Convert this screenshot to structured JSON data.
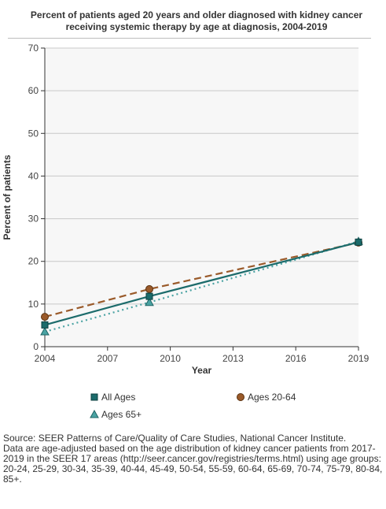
{
  "chart_data": {
    "type": "line",
    "title": "Percent of patients aged 20 years and older diagnosed with kidney cancer receiving systemic therapy by age at diagnosis, 2004-2019",
    "xlabel": "Year",
    "ylabel": "Percent of patients",
    "xlim": [
      2004,
      2019
    ],
    "ylim": [
      0,
      70
    ],
    "xticks": [
      2004,
      2007,
      2010,
      2013,
      2016,
      2019
    ],
    "yticks": [
      0,
      10,
      20,
      30,
      40,
      50,
      60,
      70
    ],
    "grid": true,
    "legend_position": "bottom",
    "series": [
      {
        "name": "All Ages",
        "x": [
          2004,
          2009,
          2019
        ],
        "values": [
          5.1,
          11.8,
          24.5
        ],
        "color": "#1c6b6b",
        "style": "solid",
        "marker": "square"
      },
      {
        "name": "Ages 20-64",
        "x": [
          2004,
          2009,
          2019
        ],
        "values": [
          7.0,
          13.5,
          24.4
        ],
        "color": "#9a5a2a",
        "style": "dashed",
        "marker": "circle"
      },
      {
        "name": "Ages 65+",
        "x": [
          2004,
          2009,
          2019
        ],
        "values": [
          3.5,
          10.4,
          24.7
        ],
        "color": "#4aa3a3",
        "style": "dotted",
        "marker": "triangle"
      }
    ]
  },
  "source_lines": [
    "Source: SEER Patterns of Care/Quality of Care Studies, National Cancer Institute.",
    "Data are age-adjusted based on the age distribution of kidney cancer patients from 2017-2019 in the SEER 17 areas (http://seer.cancer.gov/registries/terms.html) using age groups: 20-24, 25-29, 30-34, 35-39, 40-44, 45-49, 50-54, 55-59, 60-64, 65-69, 70-74, 75-79, 80-84, 85+."
  ]
}
